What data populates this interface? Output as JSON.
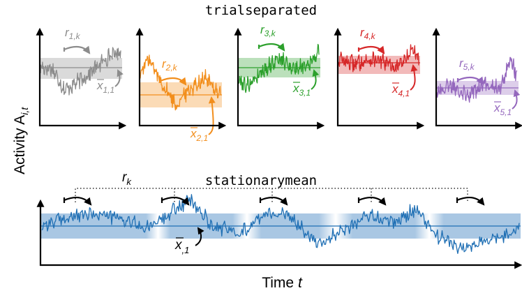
{
  "top_title": "trialseparated",
  "bottom_title": "stationarymean",
  "ylabel": {
    "main": "Activity A",
    "sub": "i,t"
  },
  "xlabel": {
    "main": "Time ",
    "var": "t"
  },
  "panels": [
    {
      "color": "#8c8c8c",
      "r_sym": "r",
      "r_sub": "1,k",
      "x_sym": "x",
      "x_sub": "1,1"
    },
    {
      "color": "#f28e1c",
      "r_sym": "r",
      "r_sub": "2,k",
      "x_sym": "x",
      "x_sub": "2,1"
    },
    {
      "color": "#2ca02c",
      "r_sym": "r",
      "r_sub": "3,k",
      "x_sym": "x",
      "x_sub": "3,1"
    },
    {
      "color": "#d62728",
      "r_sym": "r",
      "r_sub": "4,k",
      "x_sym": "x",
      "x_sub": "4,1"
    },
    {
      "color": "#9467bd",
      "r_sym": "r",
      "r_sub": "5,k",
      "x_sym": "x",
      "x_sub": "5,1"
    }
  ],
  "bottom": {
    "color": "#1f6fb4",
    "band": "#a9c7e3",
    "r_sym": "r",
    "r_sub": "k",
    "x_sym": "x",
    "x_sub": ",1"
  }
}
